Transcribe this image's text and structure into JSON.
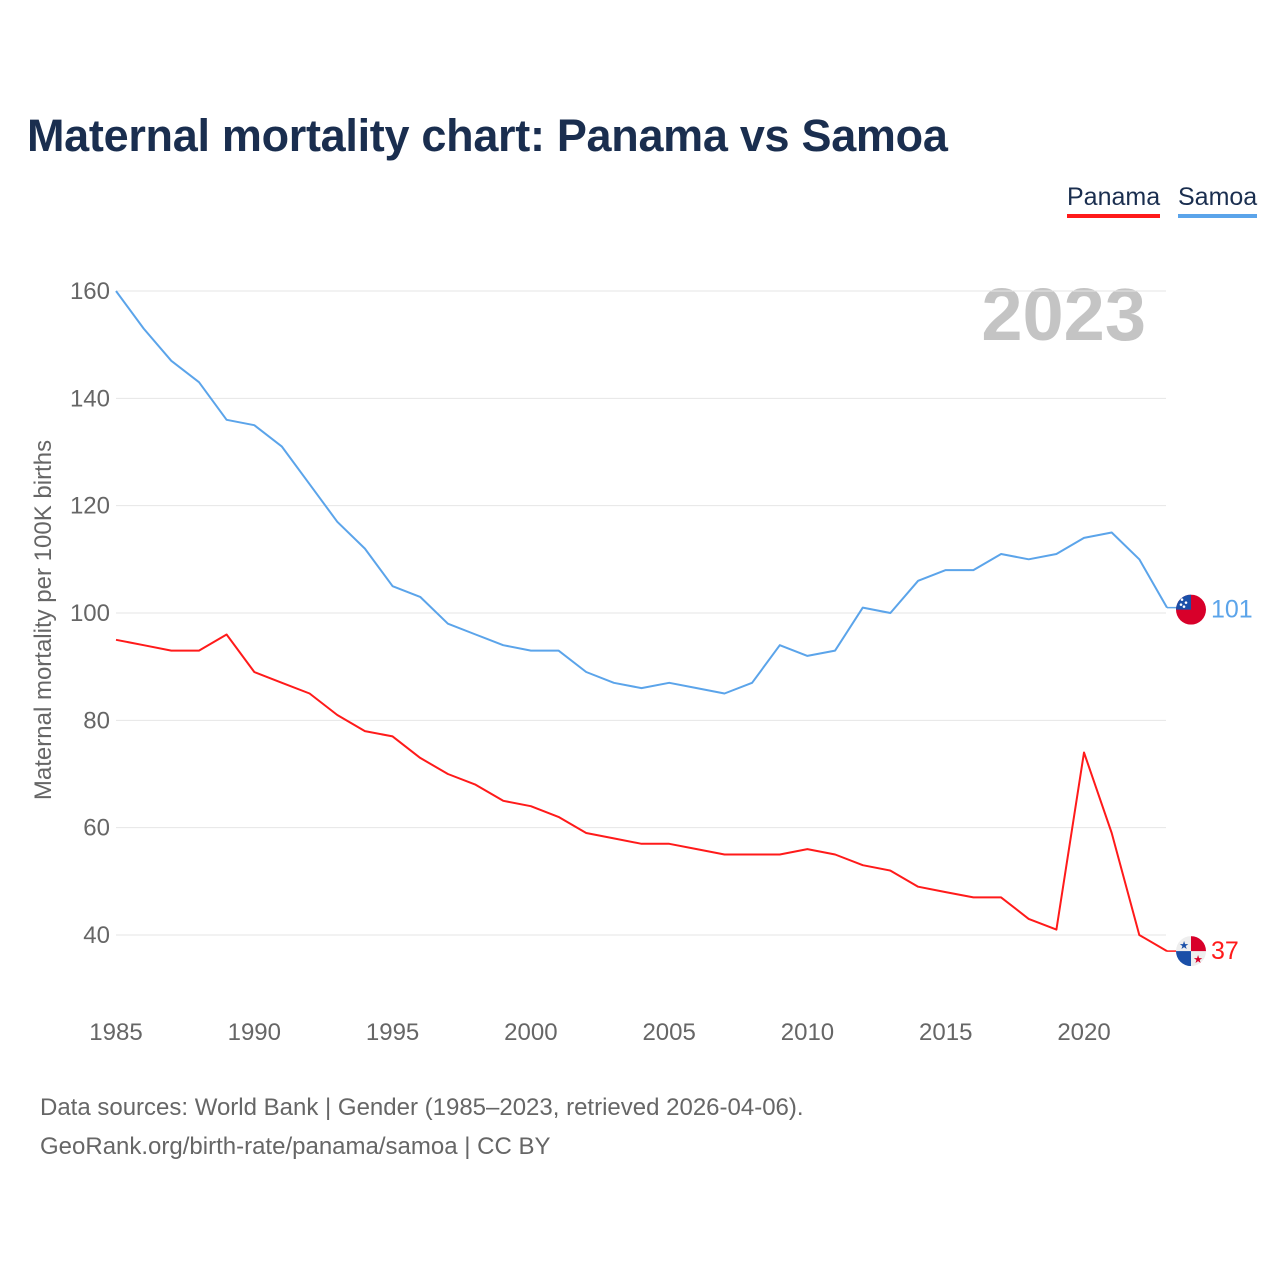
{
  "chart_data": {
    "type": "line",
    "title": "Maternal mortality chart: Panama vs Samoa",
    "ylabel": "Maternal mortality per 100K births",
    "xlabel": "",
    "year_label": "2023",
    "ylim": [
      28,
      165
    ],
    "xlim": [
      1985,
      2023
    ],
    "yticks": [
      40,
      60,
      80,
      100,
      120,
      140,
      160
    ],
    "xticks": [
      1985,
      1990,
      1995,
      2000,
      2005,
      2010,
      2015,
      2020
    ],
    "grid": true,
    "legend_position": "top-right",
    "x": [
      1985,
      1986,
      1987,
      1988,
      1989,
      1990,
      1991,
      1992,
      1993,
      1994,
      1995,
      1996,
      1997,
      1998,
      1999,
      2000,
      2001,
      2002,
      2003,
      2004,
      2005,
      2006,
      2007,
      2008,
      2009,
      2010,
      2011,
      2012,
      2013,
      2014,
      2015,
      2016,
      2017,
      2018,
      2019,
      2020,
      2021,
      2022,
      2023
    ],
    "series": [
      {
        "name": "Panama",
        "color": "#ff1a1a",
        "end_label": "37",
        "values": [
          95,
          94,
          93,
          93,
          96,
          89,
          87,
          85,
          81,
          78,
          77,
          73,
          70,
          68,
          65,
          64,
          62,
          59,
          58,
          57,
          57,
          56,
          55,
          55,
          55,
          56,
          55,
          53,
          52,
          49,
          48,
          47,
          47,
          43,
          41,
          74,
          59,
          40,
          37
        ]
      },
      {
        "name": "Samoa",
        "color": "#5ba4ea",
        "end_label": "101",
        "values": [
          160,
          153,
          147,
          143,
          136,
          135,
          131,
          124,
          117,
          112,
          105,
          103,
          98,
          96,
          94,
          93,
          93,
          89,
          87,
          86,
          87,
          86,
          85,
          87,
          94,
          92,
          93,
          101,
          100,
          106,
          108,
          108,
          111,
          110,
          111,
          114,
          115,
          110,
          101
        ]
      }
    ]
  },
  "source": {
    "line1": "Data sources: World Bank | Gender (1985–2023, retrieved 2026-04-06).",
    "line2": "GeoRank.org/birth-rate/panama/samoa | CC BY"
  }
}
